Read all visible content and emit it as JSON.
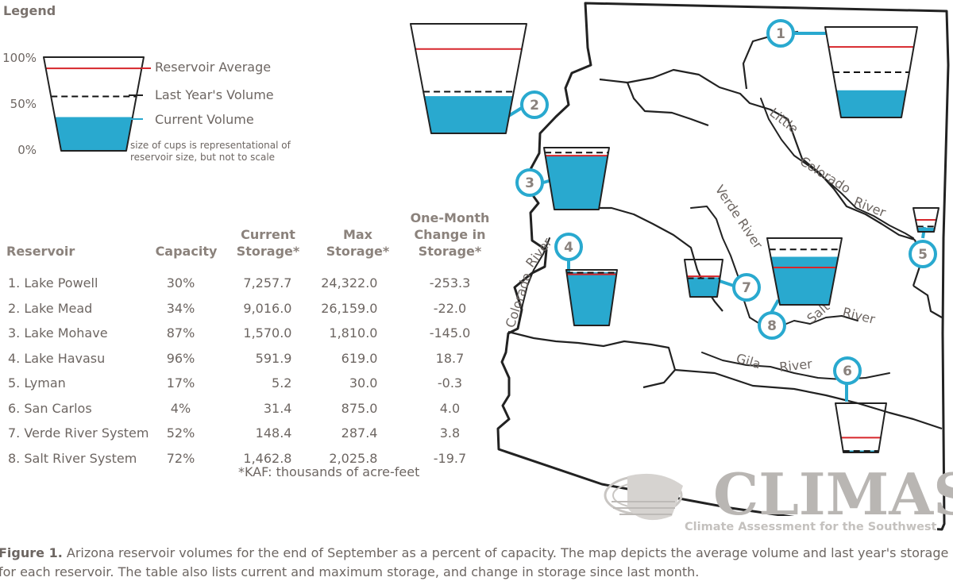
{
  "legend": {
    "title": "Legend",
    "pct_100": "100%",
    "pct_50": "50%",
    "pct_0": "0%",
    "average_label": "Reservoir Average",
    "last_year_label": "Last Year's Volume",
    "current_label": "Current Volume",
    "note": "size of cups is representational of reservoir size, but not to scale"
  },
  "colors": {
    "water": "#29a9cf",
    "average_line": "#d7262b",
    "badge": "#29a9cf",
    "outline": "#222222"
  },
  "table": {
    "headers": [
      "Reservoir",
      "Capacity",
      "Current Storage*",
      "Max Storage*",
      "One-Month Change in Storage*"
    ],
    "rows": [
      [
        "1. Lake Powell",
        "30%",
        "7,257.7",
        "24,322.0",
        "-253.3"
      ],
      [
        "2. Lake Mead",
        "34%",
        "9,016.0",
        "26,159.0",
        "-22.0"
      ],
      [
        "3. Lake Mohave",
        "87%",
        "1,570.0",
        "1,810.0",
        "-145.0"
      ],
      [
        "4. Lake Havasu",
        "96%",
        "591.9",
        "619.0",
        "18.7"
      ],
      [
        "5. Lyman",
        "17%",
        "5.2",
        "30.0",
        "-0.3"
      ],
      [
        "6. San Carlos",
        "4%",
        "31.4",
        "875.0",
        "4.0"
      ],
      [
        "7. Verde River System",
        "52%",
        "148.4",
        "287.4",
        "3.8"
      ],
      [
        "8. Salt River System",
        "72%",
        "1,462.8",
        "2,025.8",
        "-19.7"
      ]
    ],
    "footnote": "*KAF: thousands of acre-feet"
  },
  "chart_data": {
    "type": "table",
    "series_units": "percent of capacity",
    "reservoirs": [
      {
        "id": "1",
        "name": "Lake Powell",
        "current": 30,
        "last_year": 50,
        "average": 78
      },
      {
        "id": "2",
        "name": "Lake Mead",
        "current": 34,
        "last_year": 38,
        "average": 77
      },
      {
        "id": "3",
        "name": "Lake Mohave",
        "current": 87,
        "last_year": 92,
        "average": 87
      },
      {
        "id": "4",
        "name": "Lake Havasu",
        "current": 96,
        "last_year": 95,
        "average": 92
      },
      {
        "id": "5",
        "name": "Lyman",
        "current": 17,
        "last_year": 22,
        "average": 50
      },
      {
        "id": "6",
        "name": "San Carlos",
        "current": 4,
        "last_year": 3,
        "average": 30
      },
      {
        "id": "7",
        "name": "Verde River System",
        "current": 52,
        "last_year": 50,
        "average": 55
      },
      {
        "id": "8",
        "name": "Salt River System",
        "current": 72,
        "last_year": 83,
        "average": 56
      }
    ]
  },
  "map": {
    "rivers": {
      "little": "Little",
      "colorado_ne": "Colorado",
      "river_ne": "River",
      "verde": "Verde River",
      "colorado_w": "Colorado",
      "river_w": "River",
      "salt": "Salt",
      "salt_river": "River",
      "gila": "Gila",
      "gila_river": "River"
    }
  },
  "logo": {
    "name": "CLIMAS",
    "subtitle": "Climate Assessment for the Southwest"
  },
  "caption": {
    "label": "Figure 1.",
    "text": " Arizona reservoir volumes for the end of September as a percent of capacity. The map depicts the average volume and last year's storage for each reservoir. The table also lists current and maximum storage, and change in storage since last month."
  }
}
